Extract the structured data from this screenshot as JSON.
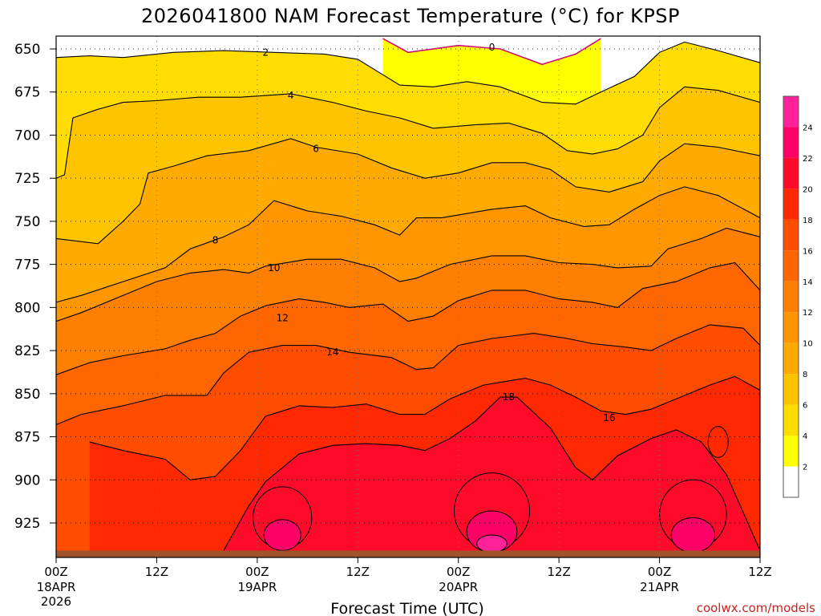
{
  "chart_data": {
    "type": "heatmap",
    "title": "2026041800 NAM Forecast Temperature (°C) for KPSP",
    "xlabel": "Forecast Time (UTC)",
    "ylabel": "",
    "credit": "coolwx.com/models",
    "y_ticks": [
      "650",
      "675",
      "700",
      "725",
      "750",
      "775",
      "800",
      "825",
      "850",
      "875",
      "900",
      "925"
    ],
    "y_tick_values": [
      650,
      675,
      700,
      725,
      750,
      775,
      800,
      825,
      850,
      875,
      900,
      925
    ],
    "ylim": [
      644,
      942
    ],
    "x_ticks": [
      {
        "hour": 0,
        "label": "00Z",
        "date": "18APR",
        "year": "2026"
      },
      {
        "hour": 12,
        "label": "12Z",
        "date": "",
        "year": ""
      },
      {
        "hour": 24,
        "label": "00Z",
        "date": "19APR",
        "year": ""
      },
      {
        "hour": 36,
        "label": "12Z",
        "date": "",
        "year": ""
      },
      {
        "hour": 48,
        "label": "00Z",
        "date": "20APR",
        "year": ""
      },
      {
        "hour": 60,
        "label": "12Z",
        "date": "",
        "year": ""
      },
      {
        "hour": 72,
        "label": "00Z",
        "date": "21APR",
        "year": ""
      },
      {
        "hour": 84,
        "label": "12Z",
        "date": "",
        "year": ""
      }
    ],
    "xlim": [
      0,
      84
    ],
    "surface_pressure": 941,
    "colorbar_levels": [
      2,
      4,
      6,
      8,
      10,
      12,
      14,
      16,
      18,
      20,
      22,
      24
    ],
    "colorbar_labels": [
      "2",
      "4",
      "6",
      "8",
      "10",
      "12",
      "14",
      "16",
      "18",
      "20",
      "22",
      "24"
    ],
    "color_scale": [
      "#ffffff",
      "#ffff00",
      "#ffdd00",
      "#ffc400",
      "#ffaa00",
      "#ff9600",
      "#ff7f00",
      "#ff6600",
      "#ff4d00",
      "#ff2800",
      "#ff0a28",
      "#ff0066",
      "#ff2299"
    ],
    "series": [
      {
        "level": 0,
        "contour_label": "0",
        "label_at": [
          52,
          649
        ],
        "points": [
          [
            39,
            644
          ],
          [
            42,
            652
          ],
          [
            48,
            648
          ],
          [
            53,
            650
          ],
          [
            58,
            659
          ],
          [
            62,
            653
          ],
          [
            65,
            644
          ]
        ]
      },
      {
        "level": 2,
        "contour_label": "2",
        "label_at": [
          25,
          652
        ],
        "points": [
          [
            0,
            655
          ],
          [
            4,
            654
          ],
          [
            8,
            655
          ],
          [
            14,
            652
          ],
          [
            20,
            651
          ],
          [
            26,
            652
          ],
          [
            32,
            653
          ],
          [
            36,
            656
          ],
          [
            38,
            662
          ],
          [
            41,
            671
          ],
          [
            45,
            672
          ],
          [
            49,
            669
          ],
          [
            53,
            672
          ],
          [
            58,
            681
          ],
          [
            62,
            682
          ],
          [
            65,
            675
          ],
          [
            69,
            666
          ],
          [
            72,
            652
          ],
          [
            75,
            646
          ],
          [
            79,
            651
          ],
          [
            84,
            658
          ]
        ]
      },
      {
        "level": 4,
        "contour_label": "4",
        "label_at": [
          28,
          677
        ],
        "points": [
          [
            0,
            725
          ],
          [
            1,
            723
          ],
          [
            2,
            690
          ],
          [
            5,
            685
          ],
          [
            8,
            681
          ],
          [
            12,
            680
          ],
          [
            17,
            678
          ],
          [
            22,
            678
          ],
          [
            28,
            676
          ],
          [
            33,
            681
          ],
          [
            37,
            686
          ],
          [
            41,
            690
          ],
          [
            45,
            696
          ],
          [
            50,
            694
          ],
          [
            54,
            693
          ],
          [
            58,
            699
          ],
          [
            61,
            709
          ],
          [
            64,
            711
          ],
          [
            67,
            708
          ],
          [
            70,
            700
          ],
          [
            72,
            684
          ],
          [
            75,
            672
          ],
          [
            79,
            674
          ],
          [
            84,
            681
          ]
        ]
      },
      {
        "level": 6,
        "contour_label": "6",
        "label_at": [
          31,
          708
        ],
        "points": [
          [
            0,
            760
          ],
          [
            5,
            763
          ],
          [
            8,
            750
          ],
          [
            10,
            740
          ],
          [
            11,
            722
          ],
          [
            14,
            718
          ],
          [
            18,
            712
          ],
          [
            23,
            709
          ],
          [
            28,
            702
          ],
          [
            31,
            707
          ],
          [
            36,
            711
          ],
          [
            40,
            719
          ],
          [
            44,
            725
          ],
          [
            48,
            722
          ],
          [
            52,
            716
          ],
          [
            56,
            716
          ],
          [
            59,
            720
          ],
          [
            62,
            730
          ],
          [
            66,
            733
          ],
          [
            70,
            727
          ],
          [
            72,
            715
          ],
          [
            75,
            705
          ],
          [
            79,
            707
          ],
          [
            84,
            712
          ]
        ]
      },
      {
        "level": 8,
        "contour_label": "8",
        "label_at": [
          19,
          761
        ],
        "points": [
          [
            0,
            797
          ],
          [
            3,
            793
          ],
          [
            8,
            785
          ],
          [
            13,
            777
          ],
          [
            16,
            766
          ],
          [
            20,
            759
          ],
          [
            23,
            752
          ],
          [
            26,
            738
          ],
          [
            30,
            744
          ],
          [
            34,
            747
          ],
          [
            38,
            752
          ],
          [
            41,
            758
          ],
          [
            43,
            748
          ],
          [
            46,
            748
          ],
          [
            52,
            743
          ],
          [
            56,
            741
          ],
          [
            59,
            748
          ],
          [
            63,
            753
          ],
          [
            66,
            752
          ],
          [
            69,
            743
          ],
          [
            72,
            735
          ],
          [
            75,
            730
          ],
          [
            79,
            735
          ],
          [
            84,
            748
          ]
        ]
      },
      {
        "level": 10,
        "contour_label": "10",
        "label_at": [
          26,
          777
        ],
        "points": [
          [
            0,
            808
          ],
          [
            3,
            803
          ],
          [
            8,
            793
          ],
          [
            12,
            785
          ],
          [
            16,
            780
          ],
          [
            20,
            778
          ],
          [
            23,
            780
          ],
          [
            25,
            776
          ],
          [
            30,
            772
          ],
          [
            34,
            772
          ],
          [
            38,
            777
          ],
          [
            41,
            785
          ],
          [
            43,
            783
          ],
          [
            47,
            775
          ],
          [
            52,
            770
          ],
          [
            56,
            770
          ],
          [
            60,
            774
          ],
          [
            64,
            775
          ],
          [
            67,
            777
          ],
          [
            71,
            776
          ],
          [
            73,
            766
          ],
          [
            77,
            760
          ],
          [
            80,
            754
          ],
          [
            84,
            759
          ]
        ]
      },
      {
        "level": 12,
        "contour_label": "12",
        "label_at": [
          27,
          806
        ],
        "points": [
          [
            0,
            839
          ],
          [
            4,
            832
          ],
          [
            8,
            828
          ],
          [
            13,
            824
          ],
          [
            16,
            819
          ],
          [
            19,
            815
          ],
          [
            22,
            805
          ],
          [
            25,
            799
          ],
          [
            29,
            795
          ],
          [
            32,
            797
          ],
          [
            35,
            800
          ],
          [
            39,
            798
          ],
          [
            42,
            808
          ],
          [
            45,
            805
          ],
          [
            48,
            796
          ],
          [
            52,
            790
          ],
          [
            56,
            790
          ],
          [
            60,
            795
          ],
          [
            64,
            797
          ],
          [
            67,
            800
          ],
          [
            70,
            789
          ],
          [
            74,
            785
          ],
          [
            78,
            777
          ],
          [
            81,
            774
          ],
          [
            84,
            790
          ]
        ]
      },
      {
        "level": 14,
        "contour_label": "14",
        "label_at": [
          33,
          826
        ],
        "points": [
          [
            0,
            868
          ],
          [
            3,
            862
          ],
          [
            8,
            857
          ],
          [
            13,
            851
          ],
          [
            18,
            851
          ],
          [
            20,
            838
          ],
          [
            23,
            826
          ],
          [
            27,
            822
          ],
          [
            31,
            822
          ],
          [
            35,
            826
          ],
          [
            40,
            829
          ],
          [
            43,
            836
          ],
          [
            45,
            835
          ],
          [
            48,
            822
          ],
          [
            52,
            818
          ],
          [
            57,
            815
          ],
          [
            61,
            818
          ],
          [
            64,
            821
          ],
          [
            68,
            823
          ],
          [
            71,
            825
          ],
          [
            74,
            818
          ],
          [
            78,
            810
          ],
          [
            82,
            812
          ],
          [
            84,
            822
          ]
        ]
      },
      {
        "level": 16,
        "contour_label": "16",
        "label_at": [
          66,
          864
        ],
        "points": [
          [
            4,
            878
          ],
          [
            8,
            883
          ],
          [
            13,
            888
          ],
          [
            16,
            900
          ],
          [
            19,
            898
          ],
          [
            22,
            883
          ],
          [
            25,
            863
          ],
          [
            29,
            857
          ],
          [
            33,
            858
          ],
          [
            37,
            856
          ],
          [
            41,
            862
          ],
          [
            44,
            862
          ],
          [
            47,
            853
          ],
          [
            51,
            845
          ],
          [
            56,
            841
          ],
          [
            59,
            845
          ],
          [
            62,
            852
          ],
          [
            65,
            860
          ],
          [
            68,
            862
          ],
          [
            71,
            859
          ],
          [
            74,
            853
          ],
          [
            78,
            845
          ],
          [
            81,
            840
          ],
          [
            84,
            848
          ]
        ]
      },
      {
        "level": 18,
        "contour_label": "18",
        "label_at": [
          54,
          852
        ],
        "points": [
          [
            20,
            941
          ],
          [
            23,
            915
          ],
          [
            25,
            901
          ],
          [
            29,
            885
          ],
          [
            33,
            880
          ],
          [
            37,
            879
          ],
          [
            41,
            880
          ],
          [
            44,
            883
          ],
          [
            47,
            876
          ],
          [
            50,
            866
          ],
          [
            53,
            852
          ],
          [
            55,
            852
          ],
          [
            59,
            870
          ],
          [
            62,
            893
          ],
          [
            64,
            900
          ],
          [
            67,
            886
          ],
          [
            71,
            876
          ],
          [
            74,
            871
          ],
          [
            77,
            878
          ],
          [
            80,
            897
          ],
          [
            84,
            941
          ]
        ]
      }
    ]
  }
}
